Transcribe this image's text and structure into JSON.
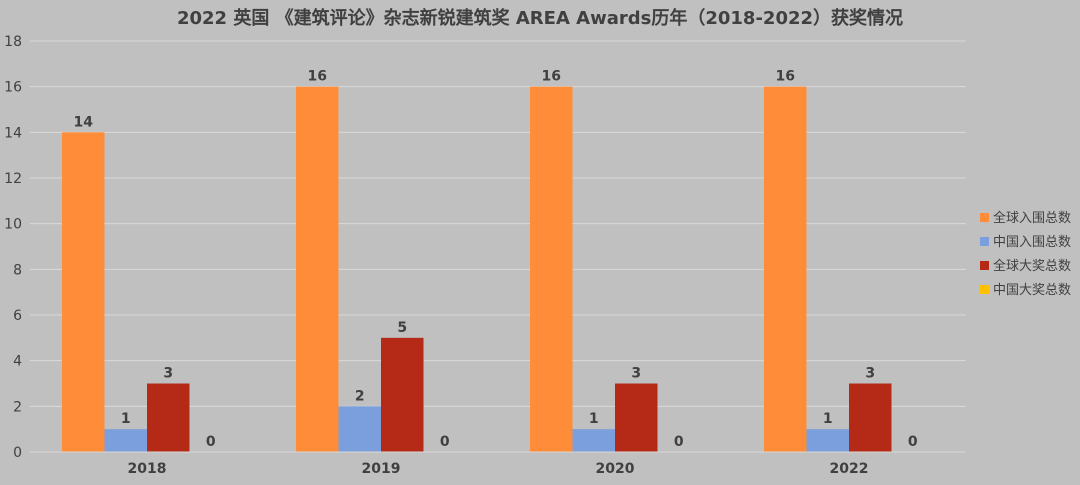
{
  "chart_data": {
    "type": "bar",
    "title": "2022 英国 《建筑评论》杂志新锐建筑奖 AREA Awards历年（2018-2022）获奖情况",
    "categories": [
      "2018",
      "2019",
      "2020",
      "2022"
    ],
    "series": [
      {
        "name": "全球入围总数",
        "color": "#ff8c38",
        "values": [
          14,
          16,
          16,
          16
        ]
      },
      {
        "name": "中国入围总数",
        "color": "#7b9edc",
        "values": [
          1,
          2,
          1,
          1
        ]
      },
      {
        "name": "全球大奖总数",
        "color": "#b52a17",
        "values": [
          3,
          5,
          3,
          3
        ]
      },
      {
        "name": "中国大奖总数",
        "color": "#ffc000",
        "values": [
          0,
          0,
          0,
          0
        ]
      }
    ],
    "ylim": [
      0,
      18
    ],
    "yticks": [
      0,
      2,
      4,
      6,
      8,
      10,
      12,
      14,
      16,
      18
    ],
    "grid": true,
    "legend": "right",
    "xlabel": "",
    "ylabel": ""
  }
}
